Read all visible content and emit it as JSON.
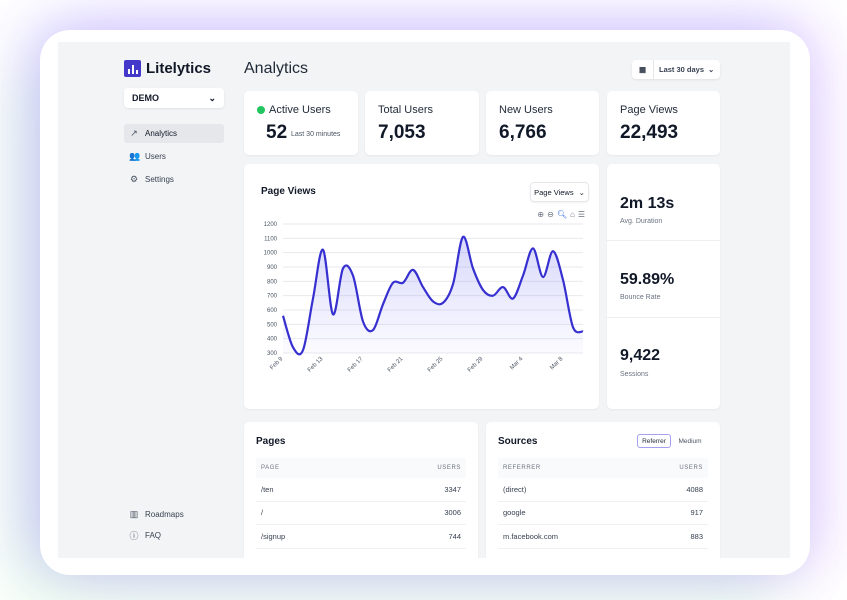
{
  "app": {
    "name": "Litelytics",
    "project": "DEMO"
  },
  "sidebar": {
    "items": [
      {
        "label": "Analytics",
        "icon": "trending-up-icon",
        "active": true
      },
      {
        "label": "Users",
        "icon": "users-icon"
      },
      {
        "label": "Settings",
        "icon": "gear-icon"
      }
    ],
    "bottom": [
      {
        "label": "Roadmaps",
        "icon": "map-icon"
      },
      {
        "label": "FAQ",
        "icon": "help-circle-icon"
      }
    ]
  },
  "header": {
    "title": "Analytics",
    "date_range": "Last 30 days"
  },
  "stats": {
    "active": {
      "label": "Active Users",
      "value": "52",
      "note": "Last 30 minutes",
      "dot_color": "#22c55e"
    },
    "total": {
      "label": "Total Users",
      "value": "7,053"
    },
    "new": {
      "label": "New Users",
      "value": "6,766"
    },
    "views": {
      "label": "Page Views",
      "value": "22,493"
    }
  },
  "side_stats": [
    {
      "value": "2m 13s",
      "label": "Avg. Duration"
    },
    {
      "value": "59.89%",
      "label": "Bounce Rate"
    },
    {
      "value": "9,422",
      "label": "Sessions"
    }
  ],
  "chart_card": {
    "title": "Page Views",
    "select": "Page Views"
  },
  "chart_data": {
    "type": "area",
    "title": "Page Views",
    "color": "#3730d0",
    "x": [
      "Feb 9",
      "Feb 10",
      "Feb 11",
      "Feb 12",
      "Feb 13",
      "Feb 14",
      "Feb 15",
      "Feb 16",
      "Feb 17",
      "Feb 18",
      "Feb 19",
      "Feb 20",
      "Feb 21",
      "Feb 22",
      "Feb 23",
      "Feb 24",
      "Feb 25",
      "Feb 26",
      "Feb 27",
      "Feb 28",
      "Feb 29",
      "Mar 1",
      "Mar 2",
      "Mar 3",
      "Mar 4",
      "Mar 5",
      "Mar 6",
      "Mar 7",
      "Mar 8",
      "Mar 9",
      "Mar 10"
    ],
    "values": [
      560,
      340,
      320,
      680,
      1020,
      570,
      890,
      840,
      520,
      460,
      640,
      790,
      790,
      880,
      760,
      660,
      650,
      780,
      1110,
      890,
      740,
      700,
      760,
      680,
      840,
      1030,
      830,
      1010,
      810,
      480,
      450
    ],
    "x_ticks": [
      "Feb 9",
      "Feb 13",
      "Feb 17",
      "Feb 21",
      "Feb 25",
      "Feb 29",
      "Mar 4",
      "Mar 8"
    ],
    "y_ticks": [
      300,
      400,
      500,
      600,
      700,
      800,
      900,
      1000,
      1100,
      1200
    ],
    "ylim": [
      300,
      1200
    ],
    "grid": true
  },
  "pages": {
    "title": "Pages",
    "columns": [
      "PAGE",
      "USERS"
    ],
    "rows": [
      [
        "/ten",
        "3347"
      ],
      [
        "/",
        "3006"
      ],
      [
        "/signup",
        "744"
      ]
    ]
  },
  "sources": {
    "title": "Sources",
    "tabs": [
      "Referrer",
      "Medium"
    ],
    "active_tab": "Referrer",
    "columns": [
      "REFERRER",
      "USERS"
    ],
    "rows": [
      [
        "(direct)",
        "4088"
      ],
      [
        "google",
        "917"
      ],
      [
        "m.facebook.com",
        "883"
      ]
    ]
  }
}
